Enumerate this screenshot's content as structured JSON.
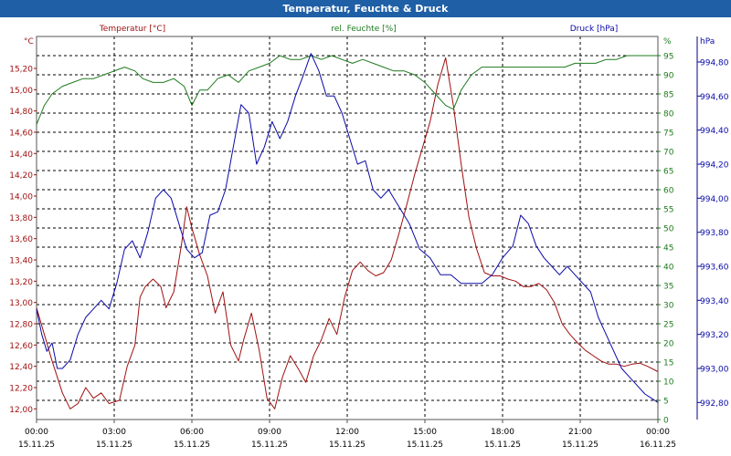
{
  "window": {
    "title": "Temperatur, Feuchte & Druck"
  },
  "chart_data": {
    "type": "line",
    "title": "Temperatur, Feuchte & Druck",
    "colors": {
      "temperature": "#a01010",
      "humidity": "#1e7a1e",
      "pressure": "#0a0aa8",
      "titlebar": "#1f5fa6"
    },
    "x_ticks": [
      {
        "time": "00:00",
        "date": "15.11.25"
      },
      {
        "time": "03:00",
        "date": "15.11.25"
      },
      {
        "time": "06:00",
        "date": "15.11.25"
      },
      {
        "time": "09:00",
        "date": "15.11.25"
      },
      {
        "time": "12:00",
        "date": "15.11.25"
      },
      {
        "time": "15:00",
        "date": "15.11.25"
      },
      {
        "time": "18:00",
        "date": "15.11.25"
      },
      {
        "time": "21:00",
        "date": "15.11.25"
      },
      {
        "time": "00:00",
        "date": "16.11.25"
      }
    ],
    "xlim_hours": [
      0,
      24
    ],
    "axes": {
      "temperature": {
        "label": "Temperatur [°C]",
        "unit": "°C",
        "ylim": [
          11.9,
          15.5
        ],
        "ticks": [
          "12,00",
          "12,20",
          "12,40",
          "12,60",
          "12,80",
          "13,00",
          "13,20",
          "13,40",
          "13,60",
          "13,80",
          "14,00",
          "14,20",
          "14,40",
          "14,60",
          "14,80",
          "15,00",
          "15,20"
        ],
        "tick_values": [
          12.0,
          12.2,
          12.4,
          12.6,
          12.8,
          13.0,
          13.2,
          13.4,
          13.6,
          13.8,
          14.0,
          14.2,
          14.4,
          14.6,
          14.8,
          15.0,
          15.2
        ]
      },
      "humidity": {
        "label": "rel. Feuchte [%]",
        "unit": "%",
        "ylim": [
          0,
          100
        ],
        "ticks": [
          "0",
          "5",
          "10",
          "15",
          "20",
          "25",
          "30",
          "35",
          "40",
          "45",
          "50",
          "55",
          "60",
          "65",
          "70",
          "75",
          "80",
          "85",
          "90",
          "95"
        ],
        "tick_values": [
          0,
          5,
          10,
          15,
          20,
          25,
          30,
          35,
          40,
          45,
          50,
          55,
          60,
          65,
          70,
          75,
          80,
          85,
          90,
          95
        ]
      },
      "pressure": {
        "label": "Druck [hPa]",
        "unit": "hPa",
        "ylim": [
          992.7,
          994.95
        ],
        "ticks": [
          "992,80",
          "993,00",
          "993,20",
          "993,40",
          "993,60",
          "993,80",
          "994,00",
          "994,20",
          "994,40",
          "994,60",
          "994,80"
        ],
        "tick_values": [
          992.8,
          993.0,
          993.2,
          993.4,
          993.6,
          993.8,
          994.0,
          994.2,
          994.4,
          994.6,
          994.8
        ]
      }
    },
    "series": [
      {
        "name": "Temperatur [°C]",
        "axis": "temperature",
        "points": [
          [
            0,
            12.95
          ],
          [
            0.3,
            12.7
          ],
          [
            0.6,
            12.45
          ],
          [
            1.0,
            12.15
          ],
          [
            1.3,
            12.0
          ],
          [
            1.6,
            12.05
          ],
          [
            1.9,
            12.2
          ],
          [
            2.2,
            12.1
          ],
          [
            2.5,
            12.15
          ],
          [
            2.8,
            12.05
          ],
          [
            3.2,
            12.08
          ],
          [
            3.5,
            12.4
          ],
          [
            3.8,
            12.6
          ],
          [
            4.0,
            13.05
          ],
          [
            4.2,
            13.15
          ],
          [
            4.5,
            13.22
          ],
          [
            4.8,
            13.15
          ],
          [
            5.0,
            12.95
          ],
          [
            5.3,
            13.1
          ],
          [
            5.6,
            13.55
          ],
          [
            5.8,
            13.9
          ],
          [
            6.0,
            13.7
          ],
          [
            6.3,
            13.45
          ],
          [
            6.6,
            13.25
          ],
          [
            6.9,
            12.9
          ],
          [
            7.2,
            13.1
          ],
          [
            7.5,
            12.6
          ],
          [
            7.8,
            12.45
          ],
          [
            8.0,
            12.65
          ],
          [
            8.3,
            12.9
          ],
          [
            8.6,
            12.55
          ],
          [
            8.9,
            12.1
          ],
          [
            9.2,
            12.0
          ],
          [
            9.5,
            12.3
          ],
          [
            9.8,
            12.5
          ],
          [
            10.1,
            12.38
          ],
          [
            10.4,
            12.25
          ],
          [
            10.7,
            12.5
          ],
          [
            11.0,
            12.65
          ],
          [
            11.3,
            12.85
          ],
          [
            11.6,
            12.7
          ],
          [
            11.9,
            13.05
          ],
          [
            12.2,
            13.3
          ],
          [
            12.5,
            13.38
          ],
          [
            12.8,
            13.3
          ],
          [
            13.1,
            13.25
          ],
          [
            13.4,
            13.28
          ],
          [
            13.7,
            13.4
          ],
          [
            14.0,
            13.65
          ],
          [
            14.3,
            13.92
          ],
          [
            14.6,
            14.2
          ],
          [
            14.9,
            14.45
          ],
          [
            15.2,
            14.7
          ],
          [
            15.5,
            15.05
          ],
          [
            15.8,
            15.3
          ],
          [
            16.1,
            14.85
          ],
          [
            16.4,
            14.3
          ],
          [
            16.7,
            13.8
          ],
          [
            17.0,
            13.5
          ],
          [
            17.3,
            13.28
          ],
          [
            17.6,
            13.25
          ],
          [
            17.9,
            13.25
          ],
          [
            18.2,
            13.22
          ],
          [
            18.5,
            13.2
          ],
          [
            18.8,
            13.15
          ],
          [
            19.1,
            13.15
          ],
          [
            19.4,
            13.18
          ],
          [
            19.7,
            13.12
          ],
          [
            20.0,
            13.0
          ],
          [
            20.3,
            12.8
          ],
          [
            20.6,
            12.7
          ],
          [
            20.9,
            12.62
          ],
          [
            21.2,
            12.55
          ],
          [
            21.5,
            12.5
          ],
          [
            21.8,
            12.45
          ],
          [
            22.1,
            12.42
          ],
          [
            22.4,
            12.42
          ],
          [
            22.7,
            12.4
          ],
          [
            23.0,
            12.42
          ],
          [
            23.3,
            12.43
          ],
          [
            23.6,
            12.4
          ],
          [
            24.0,
            12.35
          ]
        ]
      },
      {
        "name": "rel. Feuchte [%]",
        "axis": "humidity",
        "points": [
          [
            0,
            77
          ],
          [
            0.3,
            82
          ],
          [
            0.6,
            85
          ],
          [
            1.0,
            87
          ],
          [
            1.4,
            88
          ],
          [
            1.8,
            89
          ],
          [
            2.2,
            89
          ],
          [
            2.6,
            90
          ],
          [
            3.0,
            91
          ],
          [
            3.4,
            92
          ],
          [
            3.8,
            91
          ],
          [
            4.1,
            89
          ],
          [
            4.5,
            88
          ],
          [
            4.9,
            88
          ],
          [
            5.3,
            89
          ],
          [
            5.7,
            87
          ],
          [
            6.0,
            82
          ],
          [
            6.3,
            86
          ],
          [
            6.6,
            86
          ],
          [
            7.0,
            89
          ],
          [
            7.4,
            90
          ],
          [
            7.8,
            88
          ],
          [
            8.2,
            91
          ],
          [
            8.6,
            92
          ],
          [
            9.0,
            93
          ],
          [
            9.4,
            95
          ],
          [
            9.8,
            94
          ],
          [
            10.2,
            94
          ],
          [
            10.6,
            95
          ],
          [
            11.0,
            94
          ],
          [
            11.4,
            95
          ],
          [
            11.8,
            94
          ],
          [
            12.2,
            93
          ],
          [
            12.6,
            94
          ],
          [
            13.0,
            93
          ],
          [
            13.4,
            92
          ],
          [
            13.8,
            91
          ],
          [
            14.2,
            91
          ],
          [
            14.6,
            90
          ],
          [
            15.0,
            88
          ],
          [
            15.4,
            85
          ],
          [
            15.8,
            82
          ],
          [
            16.1,
            81
          ],
          [
            16.4,
            86
          ],
          [
            16.8,
            90
          ],
          [
            17.2,
            92
          ],
          [
            17.6,
            92
          ],
          [
            18.0,
            92
          ],
          [
            18.4,
            92
          ],
          [
            18.8,
            92
          ],
          [
            19.2,
            92
          ],
          [
            19.6,
            92
          ],
          [
            20.0,
            92
          ],
          [
            20.4,
            92
          ],
          [
            20.8,
            93
          ],
          [
            21.2,
            93
          ],
          [
            21.6,
            93
          ],
          [
            22.0,
            94
          ],
          [
            22.4,
            94
          ],
          [
            22.8,
            95
          ],
          [
            23.2,
            95
          ],
          [
            23.6,
            95
          ],
          [
            24.0,
            95
          ]
        ]
      },
      {
        "name": "Druck [hPa]",
        "axis": "pressure",
        "points": [
          [
            0,
            993.35
          ],
          [
            0.2,
            993.2
          ],
          [
            0.4,
            993.1
          ],
          [
            0.6,
            993.15
          ],
          [
            0.8,
            993.0
          ],
          [
            1.0,
            993.0
          ],
          [
            1.3,
            993.05
          ],
          [
            1.6,
            993.2
          ],
          [
            1.9,
            993.3
          ],
          [
            2.2,
            993.35
          ],
          [
            2.5,
            993.4
          ],
          [
            2.8,
            993.35
          ],
          [
            3.1,
            993.5
          ],
          [
            3.4,
            993.7
          ],
          [
            3.7,
            993.75
          ],
          [
            4.0,
            993.65
          ],
          [
            4.3,
            993.8
          ],
          [
            4.6,
            994.0
          ],
          [
            4.9,
            994.05
          ],
          [
            5.2,
            994.0
          ],
          [
            5.5,
            993.85
          ],
          [
            5.8,
            993.7
          ],
          [
            6.1,
            993.65
          ],
          [
            6.4,
            993.68
          ],
          [
            6.7,
            993.9
          ],
          [
            7.0,
            993.92
          ],
          [
            7.3,
            994.05
          ],
          [
            7.6,
            994.3
          ],
          [
            7.9,
            994.55
          ],
          [
            8.2,
            994.5
          ],
          [
            8.5,
            994.2
          ],
          [
            8.8,
            994.3
          ],
          [
            9.1,
            994.45
          ],
          [
            9.4,
            994.35
          ],
          [
            9.7,
            994.45
          ],
          [
            10.0,
            994.6
          ],
          [
            10.3,
            994.72
          ],
          [
            10.6,
            994.85
          ],
          [
            10.9,
            994.75
          ],
          [
            11.2,
            994.6
          ],
          [
            11.5,
            994.6
          ],
          [
            11.8,
            994.5
          ],
          [
            12.1,
            994.35
          ],
          [
            12.4,
            994.2
          ],
          [
            12.7,
            994.22
          ],
          [
            13.0,
            994.05
          ],
          [
            13.3,
            994.0
          ],
          [
            13.6,
            994.05
          ],
          [
            14.0,
            993.95
          ],
          [
            14.4,
            993.85
          ],
          [
            14.8,
            993.7
          ],
          [
            15.2,
            993.65
          ],
          [
            15.6,
            993.55
          ],
          [
            16.0,
            993.55
          ],
          [
            16.4,
            993.5
          ],
          [
            16.8,
            993.5
          ],
          [
            17.2,
            993.5
          ],
          [
            17.6,
            993.55
          ],
          [
            18.0,
            993.65
          ],
          [
            18.4,
            993.72
          ],
          [
            18.7,
            993.9
          ],
          [
            19.0,
            993.85
          ],
          [
            19.3,
            993.72
          ],
          [
            19.6,
            993.65
          ],
          [
            19.9,
            993.6
          ],
          [
            20.2,
            993.55
          ],
          [
            20.5,
            993.6
          ],
          [
            20.8,
            993.55
          ],
          [
            21.1,
            993.5
          ],
          [
            21.4,
            993.45
          ],
          [
            21.7,
            993.3
          ],
          [
            22.0,
            993.2
          ],
          [
            22.3,
            993.1
          ],
          [
            22.6,
            993.0
          ],
          [
            22.9,
            992.95
          ],
          [
            23.2,
            992.9
          ],
          [
            23.5,
            992.85
          ],
          [
            23.8,
            992.82
          ],
          [
            24.0,
            992.8
          ]
        ]
      }
    ]
  }
}
